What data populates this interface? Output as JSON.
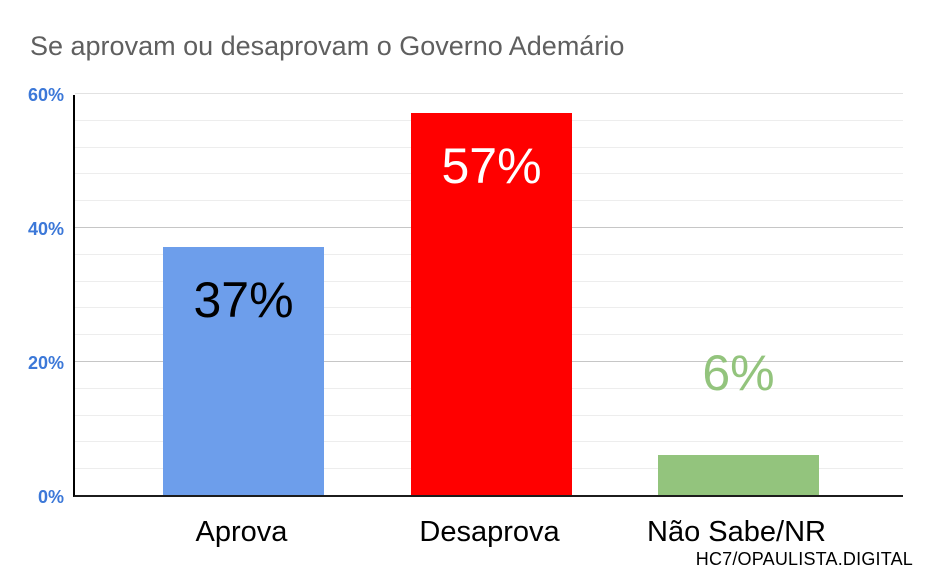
{
  "title": "Se aprovam ou desaprovam o Governo Ademário",
  "source": "HC7/OPAULISTA.DIGITAL",
  "colors": {
    "title_text": "#5f5f5f",
    "ytick_text": "#3c78d8",
    "axis_line": "#000000",
    "background": "#ffffff"
  },
  "chart_data": {
    "type": "bar",
    "title": "Se aprovam ou desaprovam o Governo Ademário",
    "categories": [
      "Aprova",
      "Desaprova",
      "Não Sabe/NR"
    ],
    "values": [
      37,
      57,
      6
    ],
    "value_labels": [
      "37%",
      "57%",
      "6%"
    ],
    "bar_colors": [
      "#6d9eeb",
      "#ff0000",
      "#93c47d"
    ],
    "value_label_colors": [
      "#000000",
      "#ffffff",
      "#93c47d"
    ],
    "value_label_placement": [
      "inside",
      "inside",
      "above"
    ],
    "xlabel": "",
    "ylabel": "",
    "ylim": [
      0,
      60
    ],
    "ytick_values": [
      0,
      20,
      40,
      60
    ],
    "ytick_labels": [
      "0%",
      "20%",
      "40%",
      "60%"
    ],
    "minor_grid_step": 4,
    "grid": true,
    "legend": "none",
    "source": "HC7/OPAULISTA.DIGITAL"
  }
}
